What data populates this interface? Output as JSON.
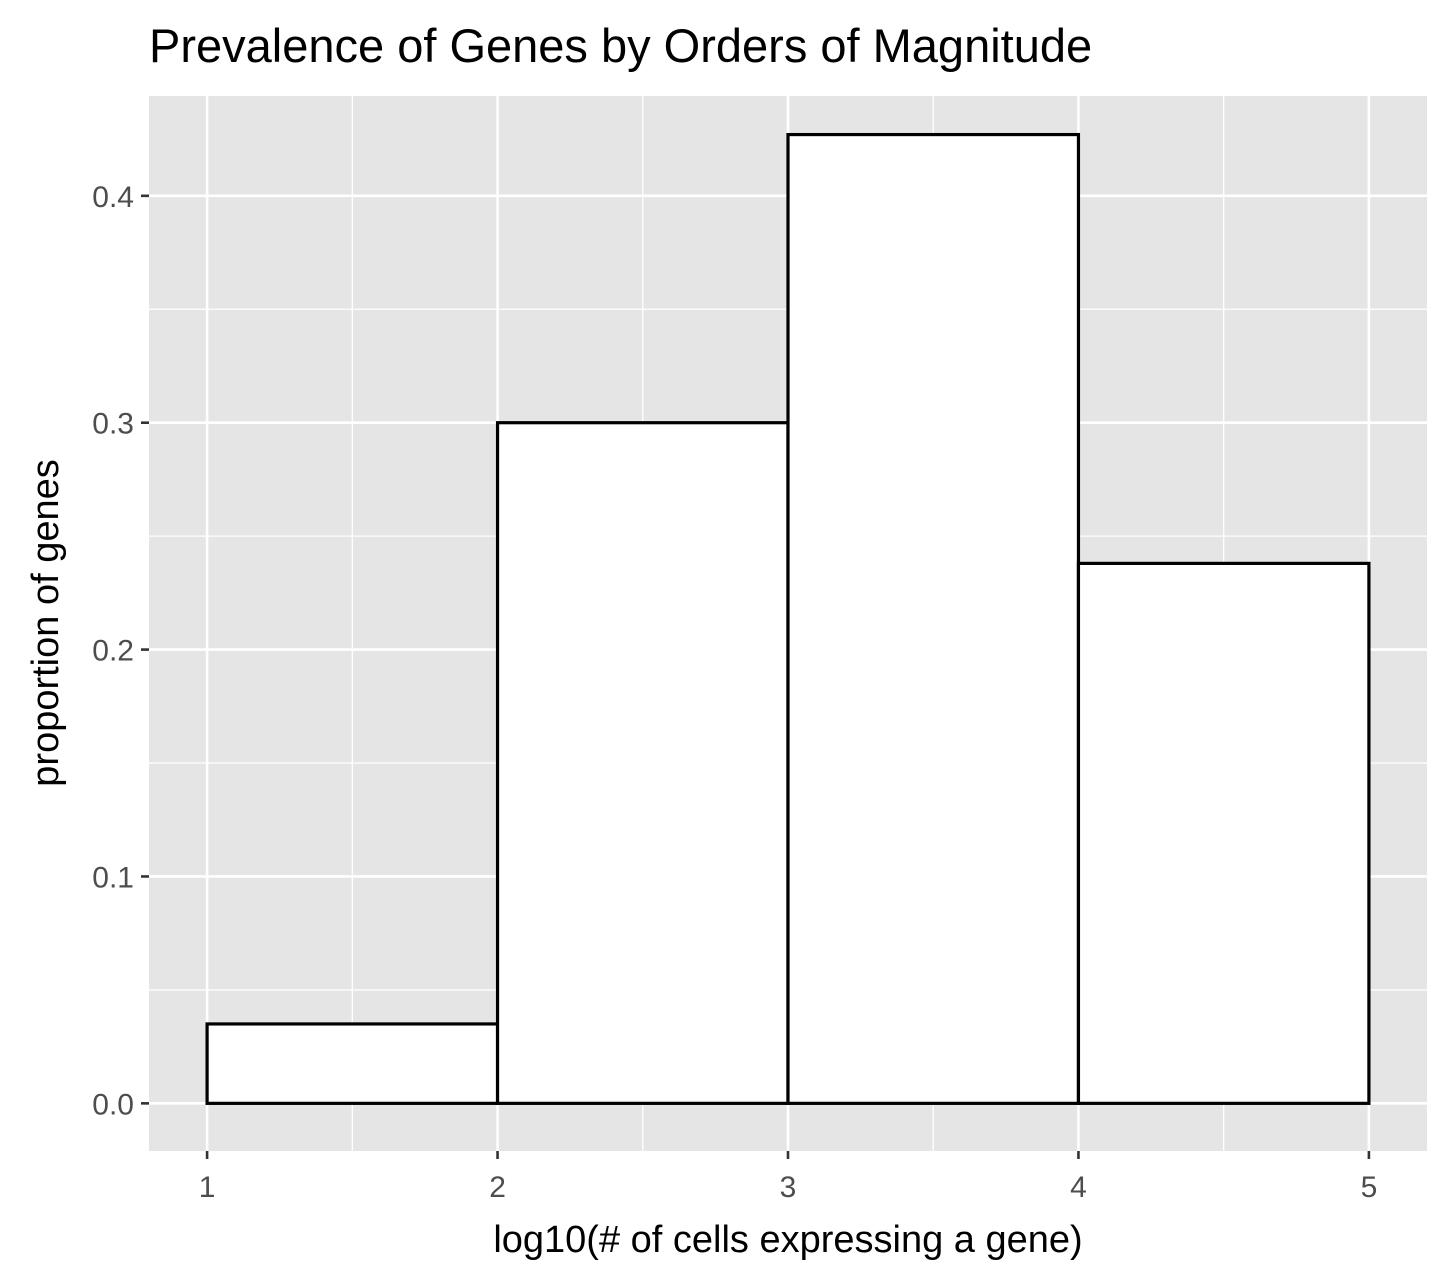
{
  "chart_data": {
    "type": "bar",
    "title": "Prevalence of Genes by Orders of Magnitude",
    "xlabel": "log10(# of cells expressing a gene)",
    "ylabel": "proportion of genes",
    "bins": [
      {
        "x_start": 1,
        "x_end": 2,
        "value": 0.035
      },
      {
        "x_start": 2,
        "x_end": 3,
        "value": 0.3
      },
      {
        "x_start": 3,
        "x_end": 4,
        "value": 0.427
      },
      {
        "x_start": 4,
        "x_end": 5,
        "value": 0.238
      }
    ],
    "xlim": [
      0.8,
      5.2
    ],
    "ylim": [
      -0.021,
      0.444
    ],
    "x_ticks": [
      1,
      2,
      3,
      4,
      5
    ],
    "x_tick_labels": [
      "1",
      "2",
      "3",
      "4",
      "5"
    ],
    "y_ticks": [
      0.0,
      0.1,
      0.2,
      0.3,
      0.4
    ],
    "y_tick_labels": [
      "0.0",
      "0.1",
      "0.2",
      "0.3",
      "0.4"
    ],
    "grid": true,
    "legend": "none",
    "colors": {
      "panel_background": "#e5e5e5",
      "grid": "#ffffff",
      "bar_fill": "#ffffff",
      "bar_outline": "#000000",
      "tick_label": "#4d4d4d"
    }
  }
}
